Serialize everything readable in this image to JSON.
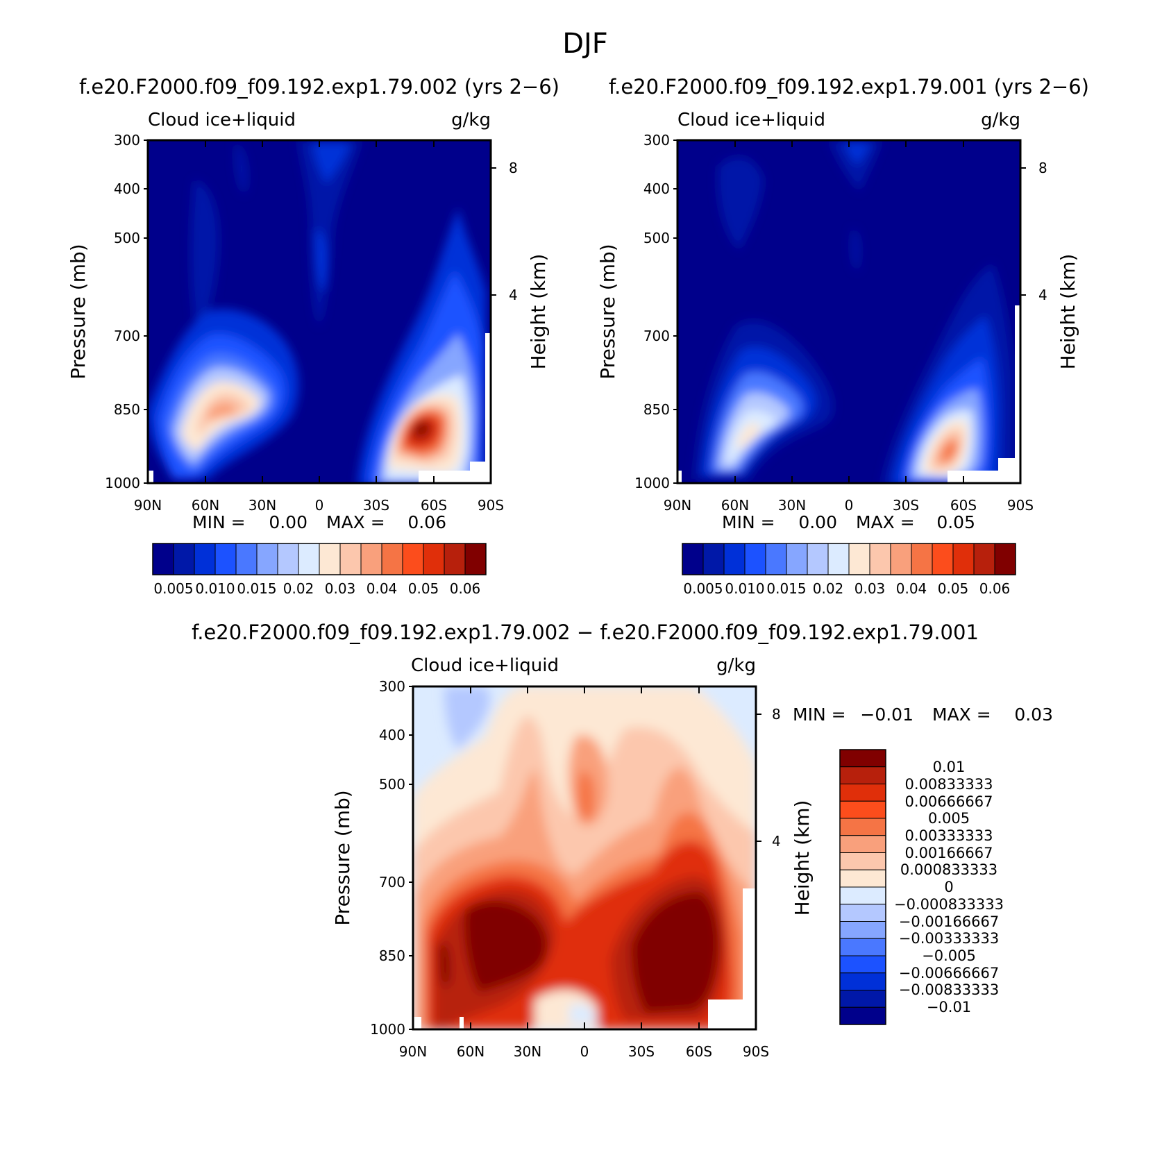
{
  "figure": {
    "season": "DJF",
    "panel_titles": {
      "left": "f.e20.F2000.f09_f09.192.exp1.79.002 (yrs 2−6)",
      "right": "f.e20.F2000.f09_f09.192.exp1.79.001 (yrs 2−6)",
      "diff": "f.e20.F2000.f09_f09.192.exp1.79.002 − f.e20.F2000.f09_f09.192.exp1.79.001"
    }
  },
  "common": {
    "variable": "Cloud ice+liquid",
    "units": "g/kg",
    "ylabel": "Pressure (mb)",
    "y2label": "Height (km)",
    "pressure_ticks": [
      "300",
      "400",
      "500",
      "700",
      "850",
      "1000"
    ],
    "height_ticks": [
      "8",
      "4"
    ],
    "lat_ticks": [
      "90N",
      "60N",
      "30N",
      "0",
      "30S",
      "60S",
      "90S"
    ]
  },
  "colors": {
    "abs_levels": [
      "#00008b",
      "#0018a8",
      "#0030d8",
      "#1c52ff",
      "#4a78ff",
      "#86a6ff",
      "#b4c8ff",
      "#dcebff",
      "#fde8d4",
      "#fcc7ad",
      "#f9a07c",
      "#f57445",
      "#fc4d1c",
      "#e02f0a",
      "#b7200c",
      "#800000"
    ],
    "diff_levels": [
      "#800000",
      "#b7200c",
      "#e02f0a",
      "#fc4d1c",
      "#f57445",
      "#f9a07c",
      "#fcc7ad",
      "#fde8d4",
      "#dcebff",
      "#b4c8ff",
      "#86a6ff",
      "#4a78ff",
      "#1c52ff",
      "#0030d8",
      "#0018a8",
      "#00008b"
    ]
  },
  "chart_data": [
    {
      "type": "heatmap",
      "panel": "left",
      "title": "f.e20.F2000.f09_f09.192.exp1.79.002 (yrs 2−6)",
      "variable": "Cloud ice+liquid",
      "units": "g/kg",
      "x": [
        "90N",
        "60N",
        "30N",
        "0",
        "30S",
        "60S",
        "90S"
      ],
      "xlim": [
        90,
        -90
      ],
      "ylim_mb": [
        1000,
        300
      ],
      "stats": {
        "min_label": "MIN =",
        "min": "0.00",
        "max_label": "MAX =",
        "max": "0.06"
      },
      "colorbar_labels": [
        "0.005",
        "0.010",
        "0.015",
        "0.02",
        "0.03",
        "0.04",
        "0.05",
        "0.06"
      ],
      "features": [
        {
          "lat": 45,
          "p": 850,
          "value": 0.035
        },
        {
          "lat": -52,
          "p": 870,
          "value": 0.06
        }
      ]
    },
    {
      "type": "heatmap",
      "panel": "right",
      "title": "f.e20.F2000.f09_f09.192.exp1.79.001 (yrs 2−6)",
      "variable": "Cloud ice+liquid",
      "units": "g/kg",
      "x": [
        "90N",
        "60N",
        "30N",
        "0",
        "30S",
        "60S",
        "90S"
      ],
      "xlim": [
        90,
        -90
      ],
      "ylim_mb": [
        1000,
        300
      ],
      "stats": {
        "min_label": "MIN =",
        "min": "0.00",
        "max_label": "MAX =",
        "max": "0.05"
      },
      "colorbar_labels": [
        "0.005",
        "0.010",
        "0.015",
        "0.02",
        "0.03",
        "0.04",
        "0.05",
        "0.06"
      ],
      "features": [
        {
          "lat": 55,
          "p": 860,
          "value": 0.025
        },
        {
          "lat": -52,
          "p": 900,
          "value": 0.04
        }
      ]
    },
    {
      "type": "heatmap",
      "panel": "difference",
      "title": "f.e20.F2000.f09_f09.192.exp1.79.002 − f.e20.F2000.f09_f09.192.exp1.79.001",
      "variable": "Cloud ice+liquid",
      "units": "g/kg",
      "x": [
        "90N",
        "60N",
        "30N",
        "0",
        "30S",
        "60S",
        "90S"
      ],
      "xlim": [
        90,
        -90
      ],
      "ylim_mb": [
        1000,
        300
      ],
      "stats": {
        "min_label": "MIN =",
        "min": "−0.01",
        "max_label": "MAX =",
        "max": "0.03"
      },
      "colorbar_labels": [
        "0.01",
        "0.00833333",
        "0.00666667",
        "0.005",
        "0.00333333",
        "0.00166667",
        "0.000833333",
        "0",
        "−0.000833333",
        "−0.00166667",
        "−0.00333333",
        "−0.005",
        "−0.00666667",
        "−0.00833333",
        "−0.01"
      ],
      "features": [
        {
          "lat": 45,
          "p": 820,
          "value": 0.01
        },
        {
          "lat": -50,
          "p": 800,
          "value": 0.01
        },
        {
          "lat": 5,
          "p": 540,
          "value": 0.004
        }
      ]
    }
  ]
}
